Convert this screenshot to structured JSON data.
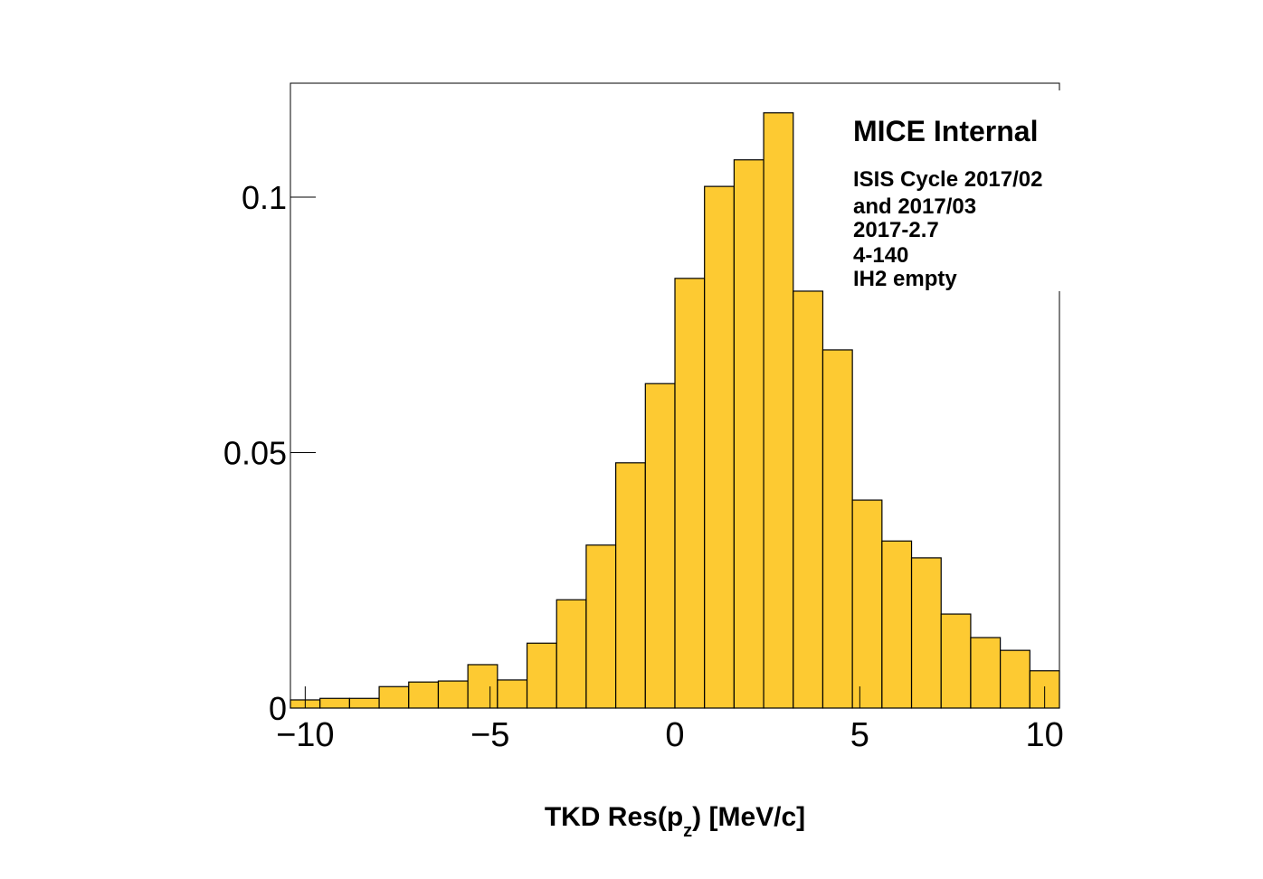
{
  "chart_data": {
    "type": "histogram",
    "xlabel": [
      "TKD Res(p",
      "z",
      ") [MeV/c]"
    ],
    "annotations": [
      "MICE Internal",
      "ISIS Cycle 2017/02",
      "and 2017/03",
      "2017-2.7",
      "4-140",
      "IH2 empty"
    ],
    "bins": [
      -10.4,
      -9.6,
      -8.8,
      -8.0,
      -7.2,
      -6.4,
      -5.6,
      -4.8,
      -4.0,
      -3.2,
      -2.4,
      -1.6,
      -0.8,
      0.0,
      0.8,
      1.6,
      2.4,
      3.2,
      4.0,
      4.8,
      5.6,
      6.4,
      7.2,
      8.0,
      8.8,
      9.6,
      10.4
    ],
    "values": [
      0.0016,
      0.0019,
      0.0019,
      0.0042,
      0.0051,
      0.0053,
      0.0085,
      0.0055,
      0.0127,
      0.0212,
      0.0319,
      0.048,
      0.0635,
      0.0841,
      0.1021,
      0.1073,
      0.1165,
      0.0816,
      0.0701,
      0.0407,
      0.0327,
      0.0294,
      0.0184,
      0.0138,
      0.0113,
      0.0073
    ],
    "color": "#fdca32",
    "xlim": [
      -10.4,
      10.4
    ],
    "ylim": [
      0,
      0.1223
    ],
    "xticks": [
      {
        "value": -10,
        "label": "−10"
      },
      {
        "value": -5,
        "label": "−5"
      },
      0,
      5,
      10
    ],
    "yticks": [
      0,
      0.05,
      0.1
    ]
  }
}
